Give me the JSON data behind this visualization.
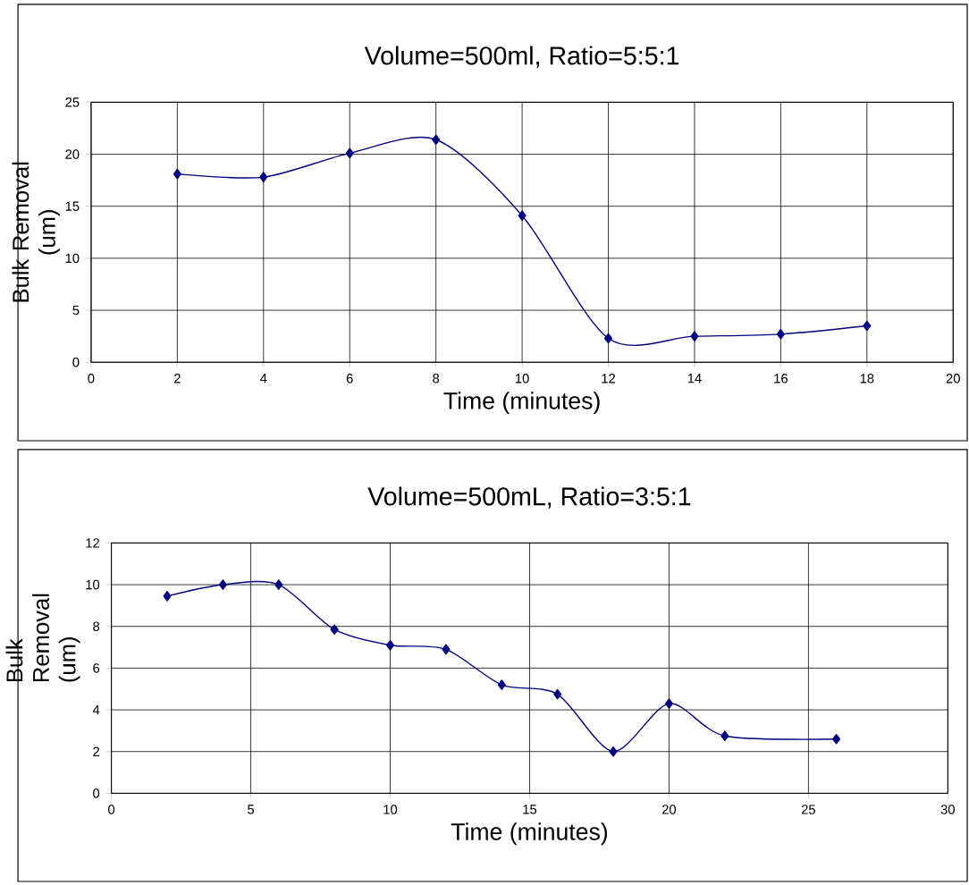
{
  "chart_data": [
    {
      "type": "line",
      "title": "Volume=500ml, Ratio=5:5:1",
      "xlabel": "Time (minutes)",
      "ylabel": "Bulk Removal (um)",
      "x": [
        2,
        4,
        6,
        8,
        10,
        12,
        14,
        16,
        18
      ],
      "series": [
        {
          "color": "#000080",
          "values": [
            18.1,
            17.8,
            20.1,
            21.4,
            14.1,
            2.3,
            2.5,
            2.7,
            3.5
          ]
        }
      ],
      "xlim": [
        0,
        20
      ],
      "ylim": [
        0,
        25
      ],
      "xticks": [
        0,
        2,
        4,
        6,
        8,
        10,
        12,
        14,
        16,
        18,
        20
      ],
      "yticks": [
        0,
        5,
        10,
        15,
        20,
        25
      ],
      "grid": true,
      "marker": "diamond",
      "line_style": "solid"
    },
    {
      "type": "line",
      "title": "Volume=500mL, Ratio=3:5:1",
      "xlabel": "Time (minutes)",
      "ylabel": "Bulk Removal (um)",
      "x": [
        2,
        4,
        6,
        8,
        10,
        12,
        14,
        16,
        18,
        20,
        22,
        26
      ],
      "series": [
        {
          "color": "#000080",
          "values": [
            9.45,
            10.0,
            10.0,
            7.85,
            7.1,
            6.9,
            5.2,
            4.75,
            2.0,
            4.3,
            2.75,
            2.6
          ]
        }
      ],
      "xlim": [
        0,
        30
      ],
      "ylim": [
        0,
        12
      ],
      "xticks": [
        0,
        5,
        10,
        15,
        20,
        25,
        30
      ],
      "yticks": [
        0,
        2,
        4,
        6,
        8,
        10,
        12
      ],
      "grid": true,
      "marker": "diamond",
      "line_style": "solid"
    }
  ]
}
